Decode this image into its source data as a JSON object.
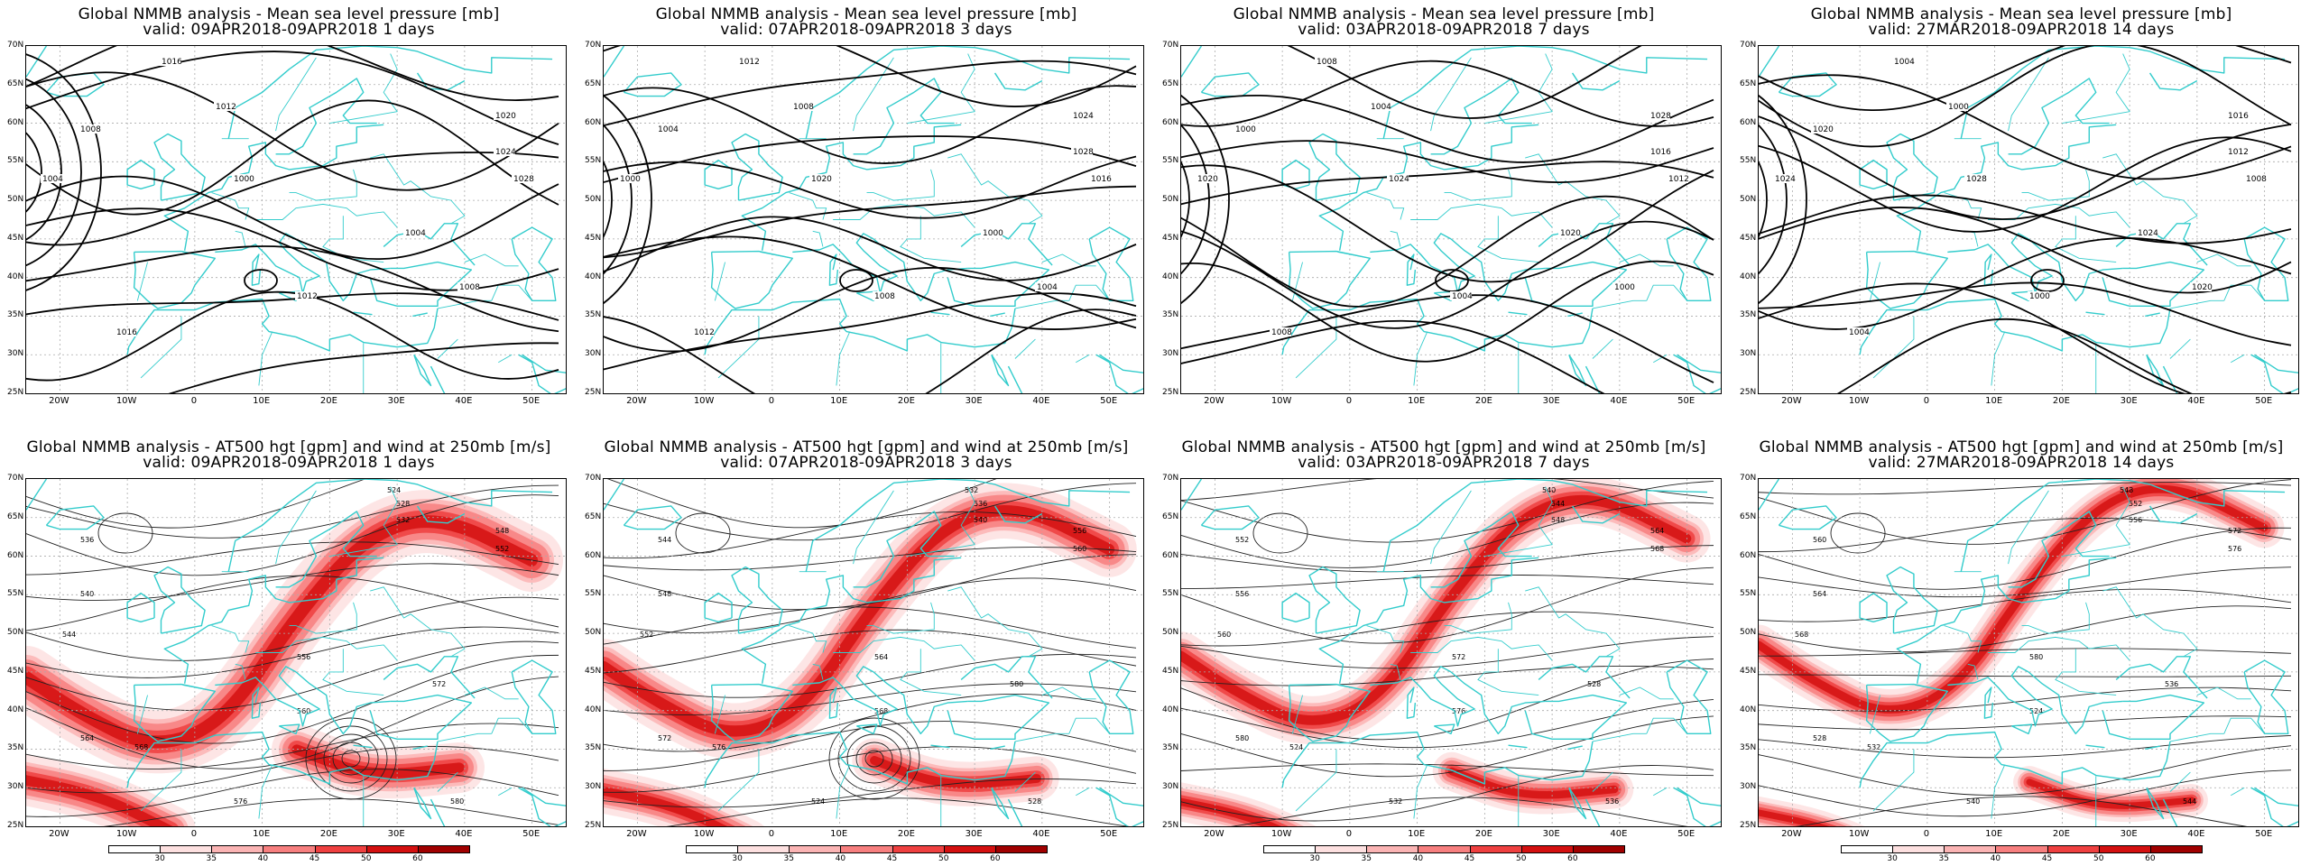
{
  "panels": [
    {
      "title1": "Global NMMB analysis - Mean sea level pressure [mb]",
      "title2": "valid: 09APR2018-09APR2018  1 days",
      "type": "mslp"
    },
    {
      "title1": "Global NMMB analysis - Mean sea level pressure [mb]",
      "title2": "valid: 07APR2018-09APR2018  3 days",
      "type": "mslp"
    },
    {
      "title1": "Global NMMB analysis - Mean sea level pressure [mb]",
      "title2": "valid: 03APR2018-09APR2018  7 days",
      "type": "mslp"
    },
    {
      "title1": "Global NMMB analysis - Mean sea level pressure [mb]",
      "title2": "valid: 27MAR2018-09APR2018  14 days",
      "type": "mslp"
    },
    {
      "title1": "Global NMMB analysis - AT500 hgt [gpm] and wind at 250mb [m/s]",
      "title2": "valid: 09APR2018-09APR2018  1 days",
      "type": "z500"
    },
    {
      "title1": "Global NMMB analysis - AT500 hgt [gpm] and wind at 250mb [m/s]",
      "title2": "valid: 07APR2018-09APR2018  3 days",
      "type": "z500"
    },
    {
      "title1": "Global NMMB analysis - AT500 hgt [gpm] and wind at 250mb [m/s]",
      "title2": "valid: 03APR2018-09APR2018  7 days",
      "type": "z500"
    },
    {
      "title1": "Global NMMB analysis - AT500 hgt [gpm] and wind at 250mb [m/s]",
      "title2": "valid: 27MAR2018-09APR2018  14 days",
      "type": "z500"
    }
  ],
  "lat_labels": [
    "70N",
    "65N",
    "60N",
    "55N",
    "50N",
    "45N",
    "40N",
    "35N",
    "30N",
    "25N"
  ],
  "lon_labels": [
    "20W",
    "10W",
    "0",
    "10E",
    "20E",
    "30E",
    "40E",
    "50E"
  ],
  "mslp_labels": [
    "1016",
    "1012",
    "1008",
    "1004",
    "1000",
    "1020",
    "1024",
    "1028"
  ],
  "z500_labels": [
    "524",
    "528",
    "532",
    "536",
    "540",
    "544",
    "548",
    "552",
    "556",
    "560",
    "564",
    "568",
    "572",
    "576",
    "580"
  ],
  "colorbar": {
    "ticks": [
      "30",
      "35",
      "40",
      "45",
      "50",
      "60"
    ],
    "colors": [
      "#ffffff",
      "#fde0e0",
      "#fbb4b4",
      "#f77f7f",
      "#ef4040",
      "#d41010",
      "#a00000"
    ]
  },
  "colors": {
    "coast": "#33cccc",
    "contour": "#000000",
    "grid": "#aaaaaa"
  }
}
